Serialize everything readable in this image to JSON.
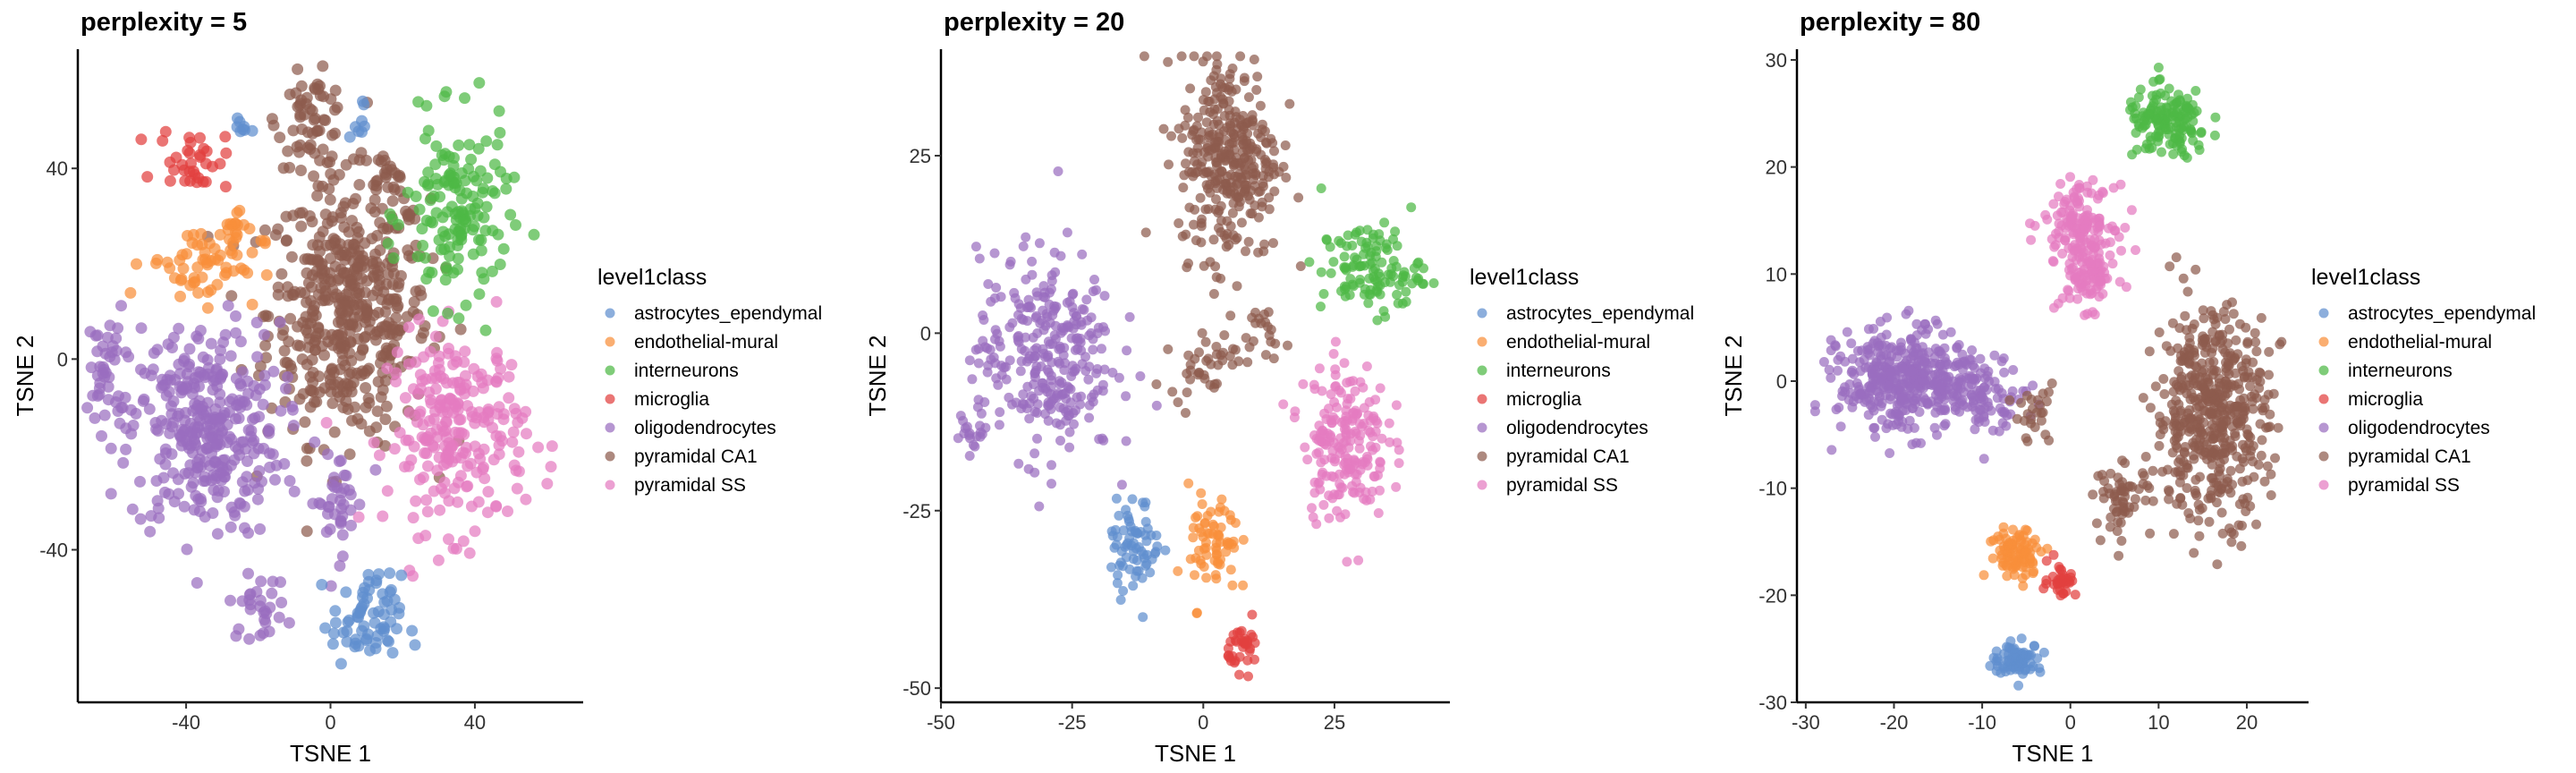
{
  "chart_data": [
    {
      "type": "scatter",
      "title": "perplexity = 5",
      "xlabel": "TSNE 1",
      "ylabel": "TSNE 2",
      "xlim": [
        -70,
        70
      ],
      "ylim": [
        -72,
        65
      ],
      "xticks": [
        -40,
        0,
        40
      ],
      "yticks": [
        -40,
        0,
        40
      ],
      "grid": false,
      "legend_placement": "right",
      "clusters": [
        {
          "class": "pyramidal CA1",
          "center": [
            5,
            10
          ],
          "spread": [
            14,
            17
          ],
          "n": 480
        },
        {
          "class": "pyramidal CA1",
          "center": [
            -5,
            50
          ],
          "spread": [
            6,
            6
          ],
          "n": 60
        },
        {
          "class": "pyramidal CA1",
          "center": [
            15,
            37
          ],
          "spread": [
            4,
            4
          ],
          "n": 25
        },
        {
          "class": "oligodendrocytes",
          "center": [
            -35,
            -15
          ],
          "spread": [
            13,
            14
          ],
          "n": 340
        },
        {
          "class": "oligodendrocytes",
          "center": [
            -62,
            -2
          ],
          "spread": [
            3,
            8
          ],
          "n": 40
        },
        {
          "class": "oligodendrocytes",
          "center": [
            -20,
            -52
          ],
          "spread": [
            5,
            4
          ],
          "n": 30
        },
        {
          "class": "oligodendrocytes",
          "center": [
            2,
            -30
          ],
          "spread": [
            5,
            7
          ],
          "n": 40
        },
        {
          "class": "pyramidal SS",
          "center": [
            35,
            -15
          ],
          "spread": [
            12,
            13
          ],
          "n": 240
        },
        {
          "class": "interneurons",
          "center": [
            35,
            30
          ],
          "spread": [
            9,
            12
          ],
          "n": 150
        },
        {
          "class": "microglia",
          "center": [
            -38,
            42
          ],
          "spread": [
            6,
            4
          ],
          "n": 35
        },
        {
          "class": "endothelial-mural",
          "center": [
            -35,
            20
          ],
          "spread": [
            10,
            5
          ],
          "n": 60
        },
        {
          "class": "endothelial-mural",
          "center": [
            -27,
            28
          ],
          "spread": [
            2,
            3
          ],
          "n": 15
        },
        {
          "class": "astrocytes_ependymal",
          "center": [
            10,
            -55
          ],
          "spread": [
            6,
            6
          ],
          "n": 70
        },
        {
          "class": "astrocytes_ependymal",
          "center": [
            -25,
            48
          ],
          "spread": [
            2,
            2
          ],
          "n": 8
        },
        {
          "class": "astrocytes_ependymal",
          "center": [
            8,
            50
          ],
          "spread": [
            2,
            3
          ],
          "n": 8
        }
      ]
    },
    {
      "type": "scatter",
      "title": "perplexity = 20",
      "xlabel": "TSNE 1",
      "ylabel": "TSNE 2",
      "xlim": [
        -50,
        47
      ],
      "ylim": [
        -52,
        40
      ],
      "xticks": [
        -50,
        -25,
        0,
        25
      ],
      "yticks": [
        -50,
        -25,
        0,
        25
      ],
      "grid": false,
      "legend_placement": "right",
      "clusters": [
        {
          "class": "pyramidal CA1",
          "center": [
            5,
            25
          ],
          "spread": [
            6,
            9
          ],
          "n": 340
        },
        {
          "class": "pyramidal CA1",
          "center": [
            0,
            -4
          ],
          "spread": [
            4,
            3
          ],
          "n": 40
        },
        {
          "class": "pyramidal CA1",
          "center": [
            11,
            0
          ],
          "spread": [
            3,
            2
          ],
          "n": 20
        },
        {
          "class": "interneurons",
          "center": [
            32,
            9
          ],
          "spread": [
            6,
            4
          ],
          "n": 120
        },
        {
          "class": "oligodendrocytes",
          "center": [
            -30,
            -3
          ],
          "spread": [
            8,
            9
          ],
          "n": 300
        },
        {
          "class": "oligodendrocytes",
          "center": [
            -44,
            -14
          ],
          "spread": [
            2,
            2
          ],
          "n": 20
        },
        {
          "class": "pyramidal SS",
          "center": [
            27,
            -15
          ],
          "spread": [
            5,
            7
          ],
          "n": 200
        },
        {
          "class": "astrocytes_ependymal",
          "center": [
            -13,
            -30
          ],
          "spread": [
            3,
            4
          ],
          "n": 70
        },
        {
          "class": "endothelial-mural",
          "center": [
            2,
            -30
          ],
          "spread": [
            3,
            5
          ],
          "n": 70
        },
        {
          "class": "microglia",
          "center": [
            8,
            -44
          ],
          "spread": [
            2,
            2
          ],
          "n": 35
        }
      ]
    },
    {
      "type": "scatter",
      "title": "perplexity = 80",
      "xlabel": "TSNE 1",
      "ylabel": "TSNE 2",
      "xlim": [
        -31,
        27
      ],
      "ylim": [
        -30,
        31
      ],
      "xticks": [
        -30,
        -20,
        -10,
        0,
        10,
        20
      ],
      "yticks": [
        -30,
        -20,
        -10,
        0,
        10,
        20,
        30
      ],
      "grid": false,
      "legend_placement": "right",
      "clusters": [
        {
          "class": "interneurons",
          "center": [
            11,
            24
          ],
          "spread": [
            3,
            2
          ],
          "n": 150
        },
        {
          "class": "pyramidal SS",
          "center": [
            1,
            15
          ],
          "spread": [
            2.5,
            2
          ],
          "n": 130
        },
        {
          "class": "pyramidal SS",
          "center": [
            2,
            10
          ],
          "spread": [
            2,
            2
          ],
          "n": 100
        },
        {
          "class": "oligodendrocytes",
          "center": [
            -19,
            0
          ],
          "spread": [
            4.5,
            3
          ],
          "n": 400
        },
        {
          "class": "oligodendrocytes",
          "center": [
            -10,
            -1
          ],
          "spread": [
            3,
            2
          ],
          "n": 100
        },
        {
          "class": "pyramidal CA1",
          "center": [
            16,
            -3
          ],
          "spread": [
            4,
            6
          ],
          "n": 500
        },
        {
          "class": "pyramidal CA1",
          "center": [
            6,
            -11
          ],
          "spread": [
            2,
            2
          ],
          "n": 60
        },
        {
          "class": "pyramidal CA1",
          "center": [
            -4,
            -3
          ],
          "spread": [
            1.5,
            2
          ],
          "n": 25
        },
        {
          "class": "endothelial-mural",
          "center": [
            -6,
            -16
          ],
          "spread": [
            2,
            1.5
          ],
          "n": 90
        },
        {
          "class": "microglia",
          "center": [
            -1,
            -18.5
          ],
          "spread": [
            1,
            1
          ],
          "n": 35
        },
        {
          "class": "astrocytes_ependymal",
          "center": [
            -6,
            -26
          ],
          "spread": [
            1.8,
            0.9
          ],
          "n": 80
        }
      ]
    }
  ],
  "legend": {
    "title": "level1class",
    "items": [
      {
        "label": "astrocytes_ependymal",
        "color": "#5f8fcf"
      },
      {
        "label": "endothelial-mural",
        "color": "#f88f3a"
      },
      {
        "label": "interneurons",
        "color": "#4db845"
      },
      {
        "label": "microglia",
        "color": "#e2403e"
      },
      {
        "label": "oligodendrocytes",
        "color": "#9a6ebf"
      },
      {
        "label": "pyramidal CA1",
        "color": "#8d5b4e"
      },
      {
        "label": "pyramidal SS",
        "color": "#e57bc1"
      }
    ]
  }
}
